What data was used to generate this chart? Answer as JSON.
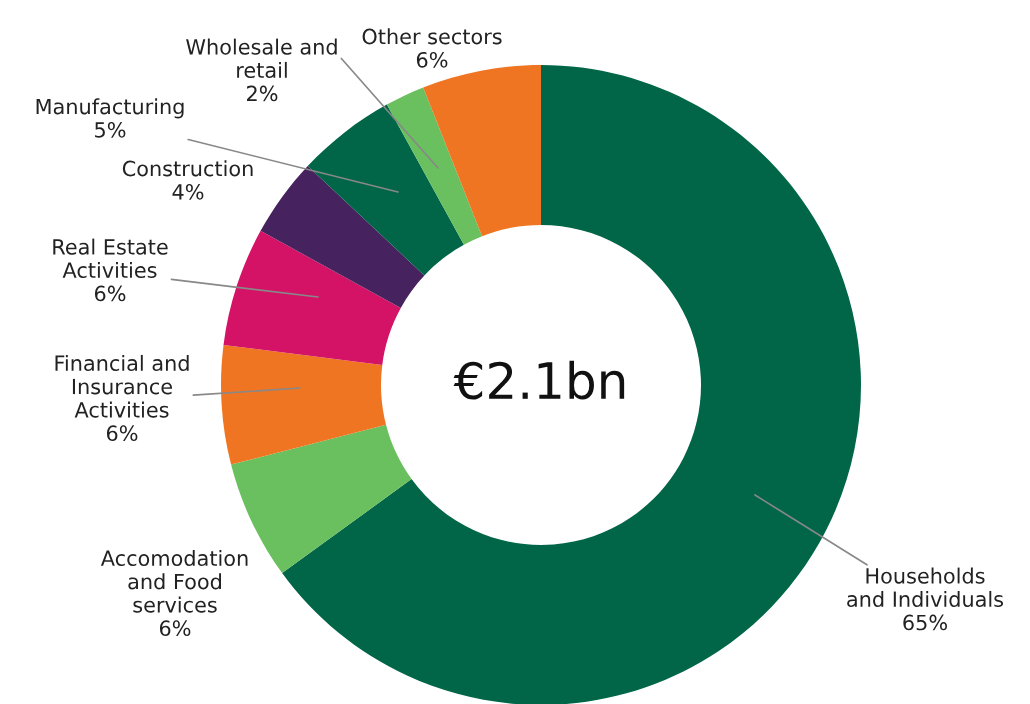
{
  "chart_data": {
    "type": "donut",
    "categories": [
      "Households\nand Individuals",
      "Accomodation\nand Food\nservices",
      "Financial and\nInsurance\nActivities",
      "Real Estate\nActivities",
      "Construction",
      "Manufacturing",
      "Wholesale and\nretail",
      "Other sectors"
    ],
    "values": [
      65,
      6,
      6,
      6,
      4,
      5,
      2,
      6
    ],
    "colors": [
      "#006647",
      "#6abf5e",
      "#f07522",
      "#d41367",
      "#46235e",
      "#006647",
      "#6abf5e",
      "#f07522"
    ],
    "value_labels": [
      "65%",
      "6%",
      "6%",
      "6%",
      "4%",
      "5%",
      "2%",
      "6%"
    ],
    "annotations": [
      "€2.1bn"
    ]
  }
}
